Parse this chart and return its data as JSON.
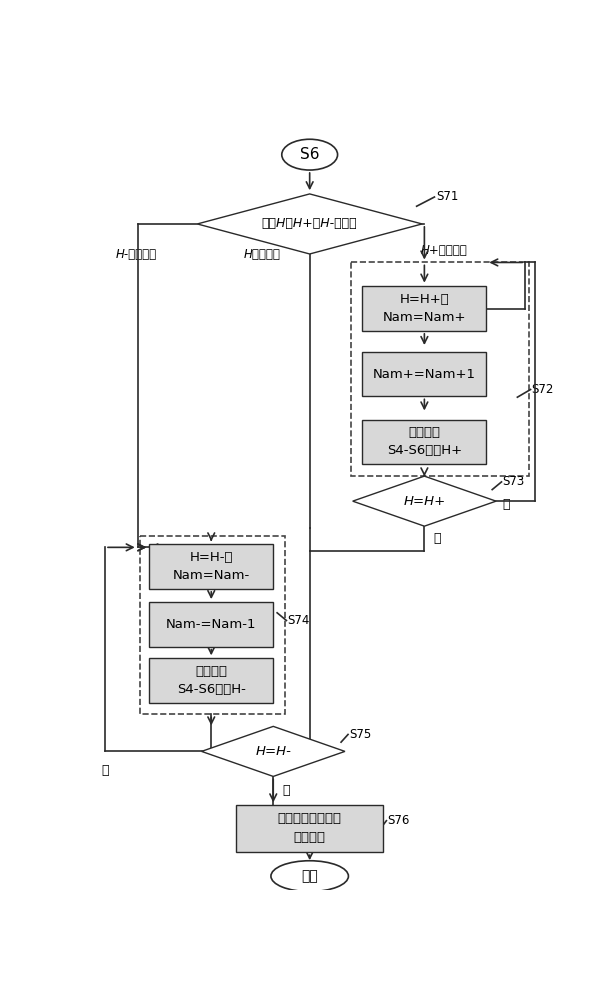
{
  "bg_color": "#ffffff",
  "line_color": "#2a2a2a",
  "box_fill": "#d8d8d8",
  "text_color": "#000000",
  "s6_text": "S6",
  "s71_text": "比较H、H+和H-的大小",
  "s71_label": "S71",
  "hplus_min_label": "H+为最小値",
  "hminus_min_label": "H-为最小値",
  "h_min_label": "H为最小値",
  "box_r1_text": "H=H+，\nNam=Nam+",
  "box_r2_text": "Nam+=Nam+1",
  "box_r3_text": "重复步骤\nS4-S6得到H+",
  "s72_label": "S72",
  "s73_text": "H=H+",
  "s73_label": "S73",
  "s73_no": "否",
  "s73_yes": "是",
  "box_l1_text": "H=H-，\nNam=Nam-",
  "box_l2_text": "Nam-=Nam-1",
  "box_l3_text": "重复步骤\nS4-S6得到H-",
  "s74_label": "S74",
  "s75_text": "H=H-",
  "s75_label": "S75",
  "s75_no": "否",
  "s75_yes": "是",
  "output_text": "输出距离徙动校正\n后的结果",
  "s76_label": "S76",
  "end_text": "结束"
}
